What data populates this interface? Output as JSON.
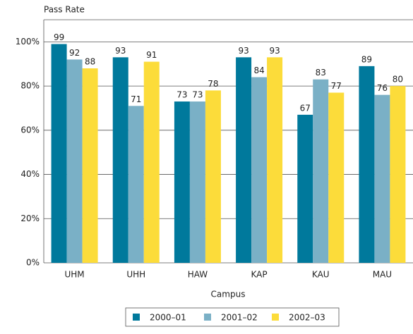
{
  "chart_data": {
    "type": "bar",
    "y_axis_label": "Pass Rate",
    "x_axis_label": "Campus",
    "categories": [
      "UHM",
      "UHH",
      "HAW",
      "KAP",
      "KAU",
      "MAU"
    ],
    "series": [
      {
        "name": "2000–01",
        "color": "#00799c",
        "values": [
          99,
          93,
          73,
          93,
          67,
          89
        ]
      },
      {
        "name": "2001–02",
        "color": "#7ab0c6",
        "values": [
          92,
          71,
          73,
          84,
          83,
          76
        ]
      },
      {
        "name": "2002–03",
        "color": "#fcdc3a",
        "values": [
          88,
          91,
          78,
          93,
          77,
          80
        ]
      }
    ],
    "ylim": [
      0,
      110
    ],
    "yticks": [
      {
        "value": 0,
        "label": "0%"
      },
      {
        "value": 20,
        "label": "20%"
      },
      {
        "value": 40,
        "label": "40%"
      },
      {
        "value": 60,
        "label": "60%"
      },
      {
        "value": 80,
        "label": "80%"
      },
      {
        "value": 100,
        "label": "100%"
      }
    ],
    "grid": true
  }
}
